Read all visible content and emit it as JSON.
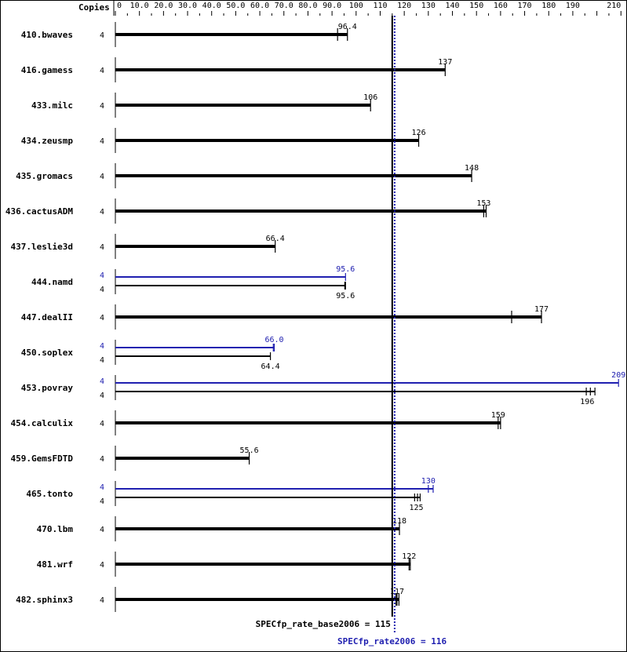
{
  "chart_data": {
    "type": "bar",
    "orientation": "horizontal",
    "copies_header": "Copies",
    "xlim": [
      0,
      210
    ],
    "x_ticks": [
      0,
      10,
      20,
      30,
      40,
      50,
      60,
      70,
      80,
      90,
      100,
      110,
      120,
      130,
      140,
      150,
      160,
      170,
      180,
      190,
      210
    ],
    "x_tick_labels": [
      "0",
      "10.0",
      "20.0",
      "30.0",
      "40.0",
      "50.0",
      "60.0",
      "70.0",
      "80.0",
      "90.0",
      "100",
      "110",
      "120",
      "130",
      "140",
      "150",
      "160",
      "170",
      "180",
      "190",
      "210"
    ],
    "colors": {
      "base": "#000000",
      "peak": "#2020b0"
    },
    "reference_lines": [
      {
        "label": "SPECfp_rate_base2006 = 115",
        "value": 115,
        "series": "base",
        "style": "solid"
      },
      {
        "label": "SPECfp_rate2006 = 116",
        "value": 116,
        "series": "peak",
        "style": "dotted"
      }
    ],
    "benchmarks": [
      {
        "name": "410.bwaves",
        "base": {
          "copies": "4",
          "value": 96.4,
          "label": "96.4",
          "runs": [
            92.3,
            96.4,
            96.4
          ]
        }
      },
      {
        "name": "416.gamess",
        "base": {
          "copies": "4",
          "value": 137,
          "label": "137",
          "runs": [
            137,
            137,
            137
          ]
        }
      },
      {
        "name": "433.milc",
        "base": {
          "copies": "4",
          "value": 106,
          "label": "106",
          "runs": [
            106,
            106,
            106
          ]
        }
      },
      {
        "name": "434.zeusmp",
        "base": {
          "copies": "4",
          "value": 126,
          "label": "126",
          "runs": [
            126,
            126,
            126
          ]
        }
      },
      {
        "name": "435.gromacs",
        "base": {
          "copies": "4",
          "value": 148,
          "label": "148",
          "runs": [
            148,
            148,
            148
          ]
        }
      },
      {
        "name": "436.cactusADM",
        "base": {
          "copies": "4",
          "value": 153,
          "label": "153",
          "runs": [
            153,
            153,
            154
          ]
        }
      },
      {
        "name": "437.leslie3d",
        "base": {
          "copies": "4",
          "value": 66.4,
          "label": "66.4",
          "runs": [
            66.4,
            66.4,
            66.4
          ]
        }
      },
      {
        "name": "444.namd",
        "peak": {
          "copies": "4",
          "value": 95.6,
          "label": "95.6",
          "runs": [
            95.6,
            95.6,
            95.6
          ]
        },
        "base": {
          "copies": "4",
          "value": 95.6,
          "label": "95.6",
          "runs": [
            95.3,
            95.6,
            95.6
          ]
        }
      },
      {
        "name": "447.dealII",
        "base": {
          "copies": "4",
          "value": 177,
          "label": "177",
          "runs": [
            164.6,
            177,
            177
          ]
        }
      },
      {
        "name": "450.soplex",
        "peak": {
          "copies": "4",
          "value": 66.0,
          "label": "66.0",
          "runs": [
            65.6,
            66.0,
            66.0
          ]
        },
        "base": {
          "copies": "4",
          "value": 64.4,
          "label": "64.4",
          "runs": [
            64.4,
            64.4,
            64.4
          ]
        }
      },
      {
        "name": "453.povray",
        "peak": {
          "copies": "4",
          "value": 209,
          "label": "209",
          "runs": [
            209,
            209,
            209
          ]
        },
        "base": {
          "copies": "4",
          "value": 196,
          "label": "196",
          "runs": [
            195.6,
            197.3,
            199.2
          ]
        }
      },
      {
        "name": "454.calculix",
        "base": {
          "copies": "4",
          "value": 159,
          "label": "159",
          "runs": [
            159,
            159,
            160
          ]
        }
      },
      {
        "name": "459.GemsFDTD",
        "base": {
          "copies": "4",
          "value": 55.6,
          "label": "55.6",
          "runs": [
            55.6,
            55.6,
            55.6
          ]
        }
      },
      {
        "name": "465.tonto",
        "peak": {
          "copies": "4",
          "value": 130,
          "label": "130",
          "runs": [
            130,
            130,
            132
          ]
        },
        "base": {
          "copies": "4",
          "value": 125,
          "label": "125",
          "runs": [
            124.3,
            125.5,
            126.6
          ]
        }
      },
      {
        "name": "470.lbm",
        "base": {
          "copies": "4",
          "value": 118,
          "label": "118",
          "runs": [
            118,
            118,
            118
          ]
        }
      },
      {
        "name": "481.wrf",
        "base": {
          "copies": "4",
          "value": 122,
          "label": "122",
          "runs": [
            122,
            122,
            122.5
          ]
        }
      },
      {
        "name": "482.sphinx3",
        "base": {
          "copies": "4",
          "value": 117,
          "label": "117",
          "runs": [
            116.6,
            117,
            117.8
          ]
        }
      }
    ]
  }
}
